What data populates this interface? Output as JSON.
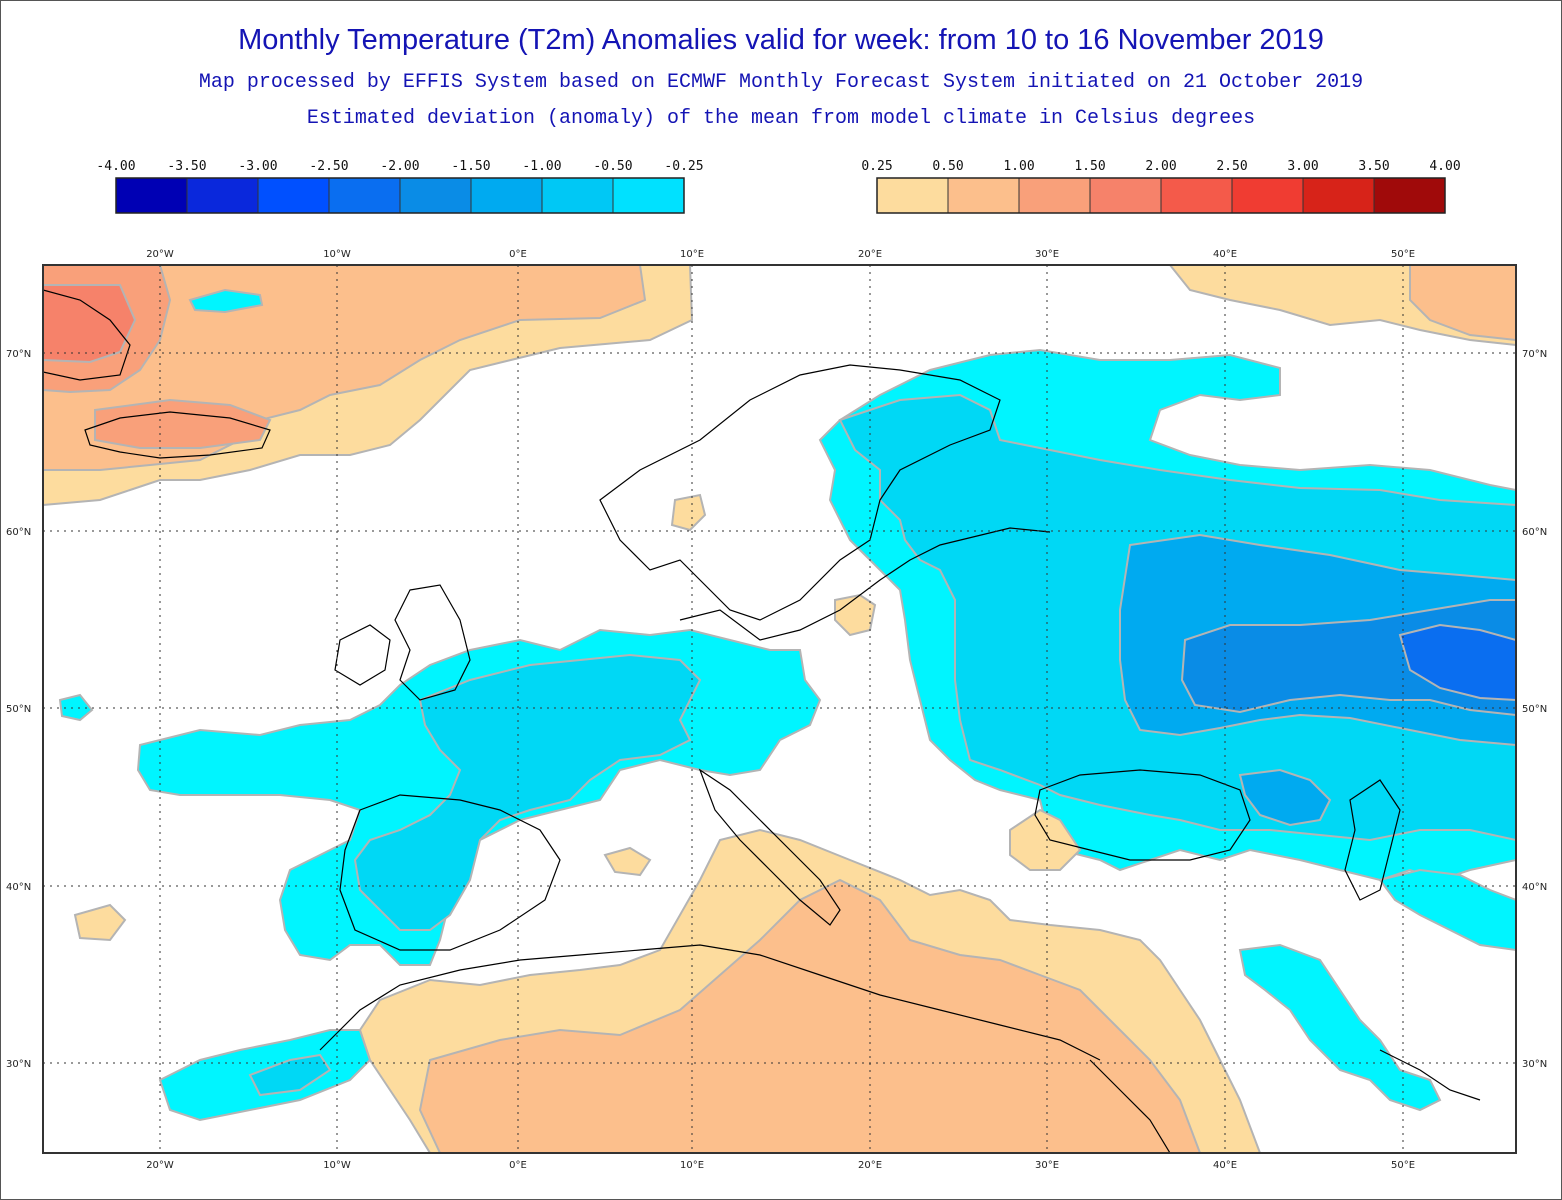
{
  "header": {
    "title": "Monthly Temperature (T2m) Anomalies valid for week: from 10 to 16 November 2019",
    "subtitle_1": "Map processed by EFFIS System based on ECMWF Monthly Forecast System initiated on 21 October 2019",
    "subtitle_2": "Estimated deviation (anomaly) of the mean from model climate in Celsius degrees"
  },
  "legend": {
    "negative": {
      "labels": [
        "-4.00",
        "-3.50",
        "-3.00",
        "-2.50",
        "-2.00",
        "-1.50",
        "-1.00",
        "-0.50",
        "-0.25"
      ],
      "colors": [
        "#0000b4",
        "#0a28dc",
        "#0050ff",
        "#0a6ef0",
        "#0a8ce6",
        "#00aaf0",
        "#00c8f5",
        "#00e1ff"
      ]
    },
    "positive": {
      "labels": [
        "0.25",
        "0.50",
        "1.00",
        "1.50",
        "2.00",
        "2.50",
        "3.00",
        "3.50",
        "4.00"
      ],
      "colors": [
        "#fddc9e",
        "#fcbf8c",
        "#f9a07a",
        "#f6826a",
        "#f45a4a",
        "#f03c32",
        "#d72319",
        "#a00a0a"
      ]
    }
  },
  "map": {
    "lon_ticks": [
      "20°W",
      "10°W",
      "0°E",
      "10°E",
      "20°E",
      "30°E",
      "40°E",
      "50°E"
    ],
    "lat_ticks": [
      "70°N",
      "60°N",
      "50°N",
      "40°N",
      "30°N"
    ],
    "colors": {
      "cyan": "#00f5ff",
      "light_blue": "#00d8f5",
      "mid_blue": "#00aaf0",
      "blue": "#0a8ce6",
      "dark_blue": "#0a6ef0",
      "beige": "#fddc9e",
      "peach": "#fcbf8c",
      "salmon": "#f9a07a",
      "coral": "#f6826a",
      "coastline": "#000000",
      "contour": "#b4b4b4"
    }
  }
}
